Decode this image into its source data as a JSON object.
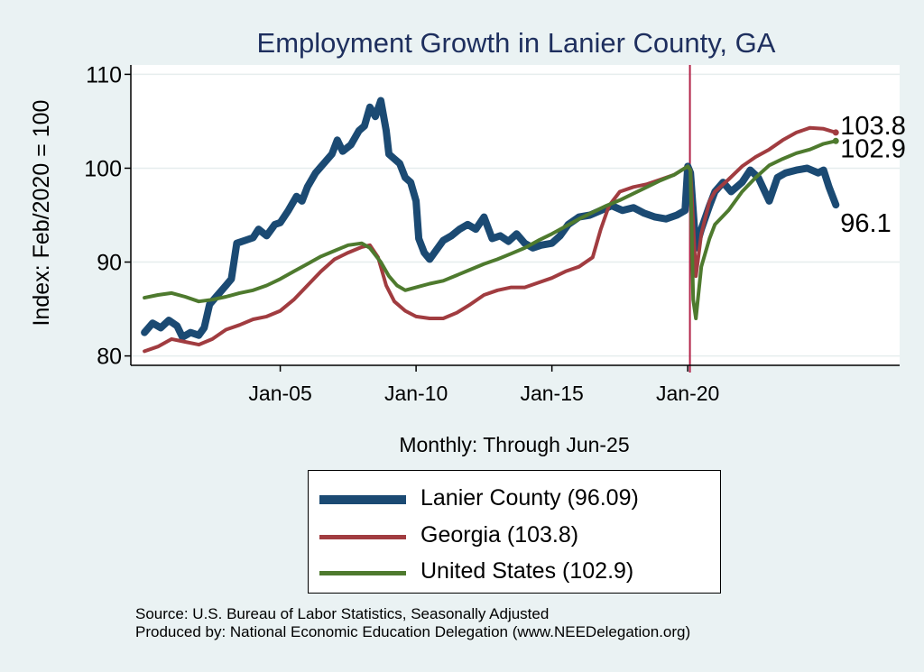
{
  "chart_data": {
    "type": "line",
    "title": "Employment Growth in Lanier  County, GA",
    "ylabel": "Index: Feb/2020 = 100",
    "xlabel": "Monthly: Through Jun-25",
    "ylim": [
      79,
      111
    ],
    "xlim": [
      1999.5,
      2027.8
    ],
    "yticks": [
      80,
      90,
      100,
      110
    ],
    "xticks": [
      {
        "value": 2005.0,
        "label": "Jan-05"
      },
      {
        "value": 2010.0,
        "label": "Jan-10"
      },
      {
        "value": 2015.0,
        "label": "Jan-15"
      },
      {
        "value": 2020.0,
        "label": "Jan-20"
      }
    ],
    "reference_line": {
      "x": 2020.08,
      "color": "#b22248"
    },
    "series": [
      {
        "name": "Lanier  County",
        "legend": "Lanier  County (96.09)",
        "color": "#1b4a73",
        "width": 8,
        "end_label": "96.1",
        "points": [
          [
            2000.0,
            82.5
          ],
          [
            2000.3,
            83.5
          ],
          [
            2000.6,
            83.0
          ],
          [
            2000.9,
            83.8
          ],
          [
            2001.2,
            83.2
          ],
          [
            2001.4,
            82.0
          ],
          [
            2001.7,
            82.5
          ],
          [
            2002.0,
            82.2
          ],
          [
            2002.2,
            83.0
          ],
          [
            2002.4,
            85.5
          ],
          [
            2002.7,
            86.5
          ],
          [
            2003.0,
            87.5
          ],
          [
            2003.2,
            88.2
          ],
          [
            2003.4,
            92.0
          ],
          [
            2003.7,
            92.3
          ],
          [
            2004.0,
            92.6
          ],
          [
            2004.2,
            93.5
          ],
          [
            2004.5,
            92.8
          ],
          [
            2004.8,
            94.0
          ],
          [
            2005.0,
            94.2
          ],
          [
            2005.3,
            95.5
          ],
          [
            2005.6,
            97.0
          ],
          [
            2005.8,
            96.5
          ],
          [
            2006.0,
            98.0
          ],
          [
            2006.3,
            99.5
          ],
          [
            2006.6,
            100.5
          ],
          [
            2006.9,
            101.5
          ],
          [
            2007.1,
            103.0
          ],
          [
            2007.3,
            101.8
          ],
          [
            2007.6,
            102.5
          ],
          [
            2007.9,
            104.0
          ],
          [
            2008.1,
            104.5
          ],
          [
            2008.3,
            106.5
          ],
          [
            2008.5,
            105.5
          ],
          [
            2008.7,
            107.2
          ],
          [
            2008.9,
            104.0
          ],
          [
            2009.0,
            101.5
          ],
          [
            2009.2,
            101.0
          ],
          [
            2009.4,
            100.5
          ],
          [
            2009.6,
            99.0
          ],
          [
            2009.8,
            98.5
          ],
          [
            2010.0,
            96.5
          ],
          [
            2010.1,
            92.5
          ],
          [
            2010.3,
            91.0
          ],
          [
            2010.5,
            90.3
          ],
          [
            2010.8,
            91.5
          ],
          [
            2011.0,
            92.3
          ],
          [
            2011.3,
            92.8
          ],
          [
            2011.6,
            93.5
          ],
          [
            2011.9,
            94.0
          ],
          [
            2012.2,
            93.5
          ],
          [
            2012.5,
            94.8
          ],
          [
            2012.8,
            92.5
          ],
          [
            2013.1,
            92.8
          ],
          [
            2013.4,
            92.2
          ],
          [
            2013.7,
            93.0
          ],
          [
            2014.0,
            92.0
          ],
          [
            2014.3,
            91.5
          ],
          [
            2014.6,
            91.8
          ],
          [
            2015.0,
            92.0
          ],
          [
            2015.3,
            92.8
          ],
          [
            2015.6,
            94.0
          ],
          [
            2016.0,
            94.8
          ],
          [
            2016.4,
            95.0
          ],
          [
            2016.8,
            95.5
          ],
          [
            2017.2,
            96.0
          ],
          [
            2017.6,
            95.5
          ],
          [
            2018.0,
            95.8
          ],
          [
            2018.4,
            95.2
          ],
          [
            2018.8,
            94.8
          ],
          [
            2019.2,
            94.6
          ],
          [
            2019.6,
            95.0
          ],
          [
            2019.9,
            95.5
          ],
          [
            2020.0,
            100.2
          ],
          [
            2020.1,
            99.5
          ],
          [
            2020.3,
            91.5
          ],
          [
            2020.5,
            93.5
          ],
          [
            2020.8,
            96.0
          ],
          [
            2021.0,
            97.5
          ],
          [
            2021.3,
            98.5
          ],
          [
            2021.6,
            97.5
          ],
          [
            2022.0,
            98.5
          ],
          [
            2022.3,
            99.8
          ],
          [
            2022.6,
            99.0
          ],
          [
            2023.0,
            96.5
          ],
          [
            2023.3,
            99.0
          ],
          [
            2023.6,
            99.5
          ],
          [
            2024.0,
            99.8
          ],
          [
            2024.4,
            100.0
          ],
          [
            2024.8,
            99.5
          ],
          [
            2025.0,
            99.8
          ],
          [
            2025.2,
            98.0
          ],
          [
            2025.45,
            96.1
          ]
        ]
      },
      {
        "name": "Georgia",
        "legend": "Georgia (103.8)",
        "color": "#a13c40",
        "width": 4,
        "end_label": "103.8",
        "points": [
          [
            2000.0,
            80.5
          ],
          [
            2000.5,
            81.0
          ],
          [
            2001.0,
            81.8
          ],
          [
            2001.5,
            81.5
          ],
          [
            2002.0,
            81.2
          ],
          [
            2002.5,
            81.8
          ],
          [
            2003.0,
            82.8
          ],
          [
            2003.5,
            83.3
          ],
          [
            2004.0,
            83.9
          ],
          [
            2004.5,
            84.2
          ],
          [
            2005.0,
            84.8
          ],
          [
            2005.5,
            86.0
          ],
          [
            2006.0,
            87.5
          ],
          [
            2006.5,
            89.0
          ],
          [
            2007.0,
            90.3
          ],
          [
            2007.5,
            91.0
          ],
          [
            2008.0,
            91.6
          ],
          [
            2008.3,
            91.8
          ],
          [
            2008.6,
            90.5
          ],
          [
            2008.9,
            87.5
          ],
          [
            2009.2,
            85.8
          ],
          [
            2009.6,
            84.8
          ],
          [
            2010.0,
            84.2
          ],
          [
            2010.5,
            84.0
          ],
          [
            2011.0,
            84.0
          ],
          [
            2011.5,
            84.6
          ],
          [
            2012.0,
            85.5
          ],
          [
            2012.5,
            86.5
          ],
          [
            2013.0,
            87.0
          ],
          [
            2013.5,
            87.3
          ],
          [
            2014.0,
            87.3
          ],
          [
            2014.5,
            87.8
          ],
          [
            2015.0,
            88.3
          ],
          [
            2015.5,
            89.0
          ],
          [
            2016.0,
            89.5
          ],
          [
            2016.5,
            90.5
          ],
          [
            2016.8,
            93.5
          ],
          [
            2017.1,
            96.0
          ],
          [
            2017.5,
            97.5
          ],
          [
            2018.0,
            98.0
          ],
          [
            2018.5,
            98.3
          ],
          [
            2019.0,
            98.8
          ],
          [
            2019.5,
            99.3
          ],
          [
            2020.0,
            100.2
          ],
          [
            2020.1,
            99.8
          ],
          [
            2020.3,
            88.5
          ],
          [
            2020.5,
            93.0
          ],
          [
            2020.8,
            96.5
          ],
          [
            2021.0,
            97.5
          ],
          [
            2021.5,
            98.8
          ],
          [
            2022.0,
            100.2
          ],
          [
            2022.5,
            101.2
          ],
          [
            2023.0,
            102.0
          ],
          [
            2023.5,
            103.0
          ],
          [
            2024.0,
            103.8
          ],
          [
            2024.5,
            104.3
          ],
          [
            2025.0,
            104.2
          ],
          [
            2025.45,
            103.8
          ]
        ]
      },
      {
        "name": "United States",
        "legend": "United States (102.9)",
        "color": "#4e7a2e",
        "width": 4,
        "end_label": "102.9",
        "points": [
          [
            2000.0,
            86.2
          ],
          [
            2000.5,
            86.5
          ],
          [
            2001.0,
            86.7
          ],
          [
            2001.5,
            86.3
          ],
          [
            2002.0,
            85.8
          ],
          [
            2002.5,
            86.0
          ],
          [
            2003.0,
            86.3
          ],
          [
            2003.5,
            86.7
          ],
          [
            2004.0,
            87.0
          ],
          [
            2004.5,
            87.5
          ],
          [
            2005.0,
            88.2
          ],
          [
            2005.5,
            89.0
          ],
          [
            2006.0,
            89.8
          ],
          [
            2006.5,
            90.6
          ],
          [
            2007.0,
            91.2
          ],
          [
            2007.5,
            91.8
          ],
          [
            2008.0,
            92.0
          ],
          [
            2008.3,
            91.5
          ],
          [
            2008.7,
            90.0
          ],
          [
            2009.0,
            88.5
          ],
          [
            2009.3,
            87.5
          ],
          [
            2009.6,
            87.0
          ],
          [
            2010.0,
            87.3
          ],
          [
            2010.5,
            87.7
          ],
          [
            2011.0,
            88.0
          ],
          [
            2011.5,
            88.6
          ],
          [
            2012.0,
            89.2
          ],
          [
            2012.5,
            89.8
          ],
          [
            2013.0,
            90.3
          ],
          [
            2013.5,
            90.9
          ],
          [
            2014.0,
            91.5
          ],
          [
            2014.5,
            92.3
          ],
          [
            2015.0,
            93.0
          ],
          [
            2015.5,
            93.8
          ],
          [
            2016.0,
            94.6
          ],
          [
            2016.5,
            95.3
          ],
          [
            2017.0,
            96.0
          ],
          [
            2017.5,
            96.6
          ],
          [
            2018.0,
            97.3
          ],
          [
            2018.5,
            98.0
          ],
          [
            2019.0,
            98.7
          ],
          [
            2019.5,
            99.3
          ],
          [
            2020.0,
            100.2
          ],
          [
            2020.1,
            99.8
          ],
          [
            2020.2,
            86.0
          ],
          [
            2020.3,
            84.0
          ],
          [
            2020.5,
            89.5
          ],
          [
            2020.8,
            92.5
          ],
          [
            2021.0,
            94.0
          ],
          [
            2021.5,
            95.5
          ],
          [
            2022.0,
            97.5
          ],
          [
            2022.5,
            99.0
          ],
          [
            2023.0,
            100.3
          ],
          [
            2023.5,
            101.0
          ],
          [
            2024.0,
            101.6
          ],
          [
            2024.5,
            102.0
          ],
          [
            2025.0,
            102.6
          ],
          [
            2025.45,
            102.9
          ]
        ]
      }
    ]
  },
  "source_lines": [
    "Source: U.S. Bureau of Labor Statistics, Seasonally Adjusted",
    "Produced by: National Economic Education Delegation (www.NEEDelegation.org)"
  ]
}
